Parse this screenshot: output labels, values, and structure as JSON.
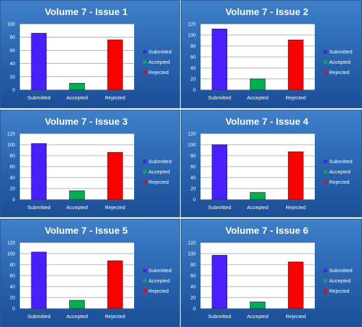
{
  "chart_data": [
    {
      "type": "bar",
      "title": "Volume 7 - Issue 1",
      "categories": [
        "Submitted",
        "Accepted",
        "Rejected"
      ],
      "values": [
        86,
        10,
        76
      ],
      "ylim": [
        0,
        100
      ],
      "yticks": [
        0,
        20,
        40,
        60,
        80,
        100
      ],
      "colors": [
        "#4a1fff",
        "#00b050",
        "#ff0000"
      ],
      "legend": [
        "Submitted",
        "Accepted",
        "Rejected"
      ],
      "legend_position": "right",
      "grid": true
    },
    {
      "type": "bar",
      "title": "Volume 7 - Issue 2",
      "categories": [
        "Submitted",
        "Accepted",
        "Rejected"
      ],
      "values": [
        111,
        20,
        91
      ],
      "ylim": [
        0,
        120
      ],
      "yticks": [
        0,
        20,
        40,
        60,
        80,
        100,
        120
      ],
      "colors": [
        "#4a1fff",
        "#00b050",
        "#ff0000"
      ],
      "legend": [
        "Submitted",
        "Accepted",
        "Rejected"
      ],
      "legend_position": "right",
      "grid": true
    },
    {
      "type": "bar",
      "title": "Volume 7 - Issue 3",
      "categories": [
        "Submitted",
        "Accepted",
        "Rejected"
      ],
      "values": [
        102,
        16,
        86
      ],
      "ylim": [
        0,
        120
      ],
      "yticks": [
        0,
        20,
        40,
        60,
        80,
        100,
        120
      ],
      "colors": [
        "#4a1fff",
        "#00b050",
        "#ff0000"
      ],
      "legend": [
        "Submitted",
        "Accepted",
        "Rejected"
      ],
      "legend_position": "right",
      "grid": true
    },
    {
      "type": "bar",
      "title": "Volume 7 - Issue 4",
      "categories": [
        "Submitted",
        "Accepted",
        "Rejected"
      ],
      "values": [
        100,
        13,
        87
      ],
      "ylim": [
        0,
        120
      ],
      "yticks": [
        0,
        20,
        40,
        60,
        80,
        100,
        120
      ],
      "colors": [
        "#4a1fff",
        "#00b050",
        "#ff0000"
      ],
      "legend": [
        "Submitted",
        "Accepted",
        "Rejected"
      ],
      "legend_position": "right",
      "grid": true
    },
    {
      "type": "bar",
      "title": "Volume 7 - Issue 5",
      "categories": [
        "Submitted",
        "Accepted",
        "Rejected"
      ],
      "values": [
        103,
        15,
        87
      ],
      "ylim": [
        0,
        120
      ],
      "yticks": [
        0,
        20,
        40,
        60,
        80,
        100,
        120
      ],
      "colors": [
        "#4a1fff",
        "#00b050",
        "#ff0000"
      ],
      "legend": [
        "Submitted",
        "Accepted",
        "Rejected"
      ],
      "legend_position": "right",
      "grid": true
    },
    {
      "type": "bar",
      "title": "Volume 7 - Issue 6",
      "categories": [
        "Submitted",
        "Accepted",
        "Rejected"
      ],
      "values": [
        97,
        12,
        85
      ],
      "ylim": [
        0,
        120
      ],
      "yticks": [
        0,
        20,
        40,
        60,
        80,
        100,
        120
      ],
      "colors": [
        "#4a1fff",
        "#00b050",
        "#ff0000"
      ],
      "legend": [
        "Submitted",
        "Accepted",
        "Rejected"
      ],
      "legend_position": "right",
      "grid": true
    }
  ]
}
